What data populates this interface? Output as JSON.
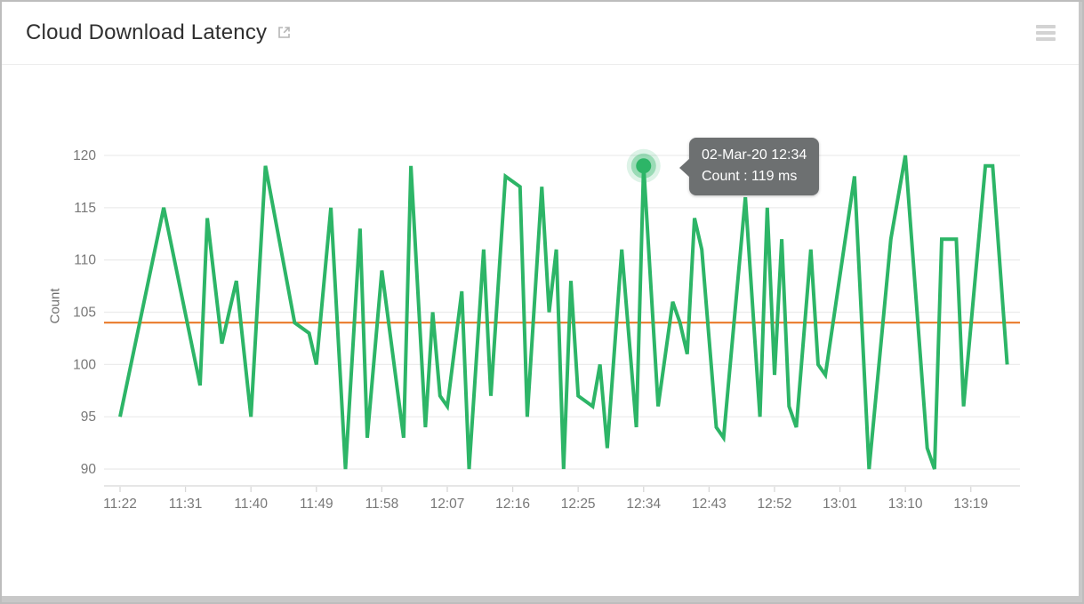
{
  "header": {
    "title": "Cloud Download Latency",
    "icons": {
      "external_link": "open-in-new",
      "menu": "hamburger-menu"
    }
  },
  "tooltip": {
    "line1": "02-Mar-20 12:34",
    "line2": "Count : 119 ms"
  },
  "colors": {
    "line": "#2db567",
    "threshold": "#e8731f",
    "tooltip_bg": "#6d7071",
    "grid": "#ececec",
    "axis_text": "#787878",
    "title_text": "#2f2f2f"
  },
  "chart_data": {
    "type": "line",
    "title": "Cloud Download Latency",
    "xlabel": "",
    "ylabel": "Count",
    "ylim": [
      90,
      120
    ],
    "grid": "horizontal",
    "yticks": [
      90,
      95,
      100,
      105,
      110,
      115,
      120
    ],
    "xticks": [
      "11:22",
      "11:31",
      "11:40",
      "11:49",
      "11:58",
      "12:07",
      "12:16",
      "12:25",
      "12:34",
      "12:43",
      "12:52",
      "13:01",
      "13:10",
      "13:19"
    ],
    "threshold": 104,
    "unit": "ms",
    "highlight": {
      "time": "12:34",
      "value": 119,
      "date": "02-Mar-20"
    },
    "points": [
      [
        "11:22",
        95
      ],
      [
        "11:28",
        115
      ],
      [
        "11:33",
        98
      ],
      [
        "11:34",
        114
      ],
      [
        "11:36",
        102
      ],
      [
        "11:38",
        108
      ],
      [
        "11:40",
        95
      ],
      [
        "11:42",
        119
      ],
      [
        "11:46",
        104
      ],
      [
        "11:48",
        103
      ],
      [
        "11:49",
        100
      ],
      [
        "11:51",
        115
      ],
      [
        "11:53",
        90
      ],
      [
        "11:55",
        113
      ],
      [
        "11:56",
        93
      ],
      [
        "11:58",
        109
      ],
      [
        "12:01",
        93
      ],
      [
        "12:02",
        119
      ],
      [
        "12:04",
        94
      ],
      [
        "12:05",
        105
      ],
      [
        "12:06",
        97
      ],
      [
        "12:07",
        96
      ],
      [
        "12:09",
        107
      ],
      [
        "12:10",
        90
      ],
      [
        "12:12",
        111
      ],
      [
        "12:13",
        97
      ],
      [
        "12:15",
        118
      ],
      [
        "12:17",
        117
      ],
      [
        "12:18",
        95
      ],
      [
        "12:20",
        117
      ],
      [
        "12:21",
        105
      ],
      [
        "12:22",
        111
      ],
      [
        "12:23",
        90
      ],
      [
        "12:24",
        108
      ],
      [
        "12:25",
        97
      ],
      [
        "12:27",
        96
      ],
      [
        "12:28",
        100
      ],
      [
        "12:29",
        92
      ],
      [
        "12:31",
        111
      ],
      [
        "12:33",
        94
      ],
      [
        "12:34",
        119
      ],
      [
        "12:36",
        96
      ],
      [
        "12:38",
        106
      ],
      [
        "12:39",
        104
      ],
      [
        "12:40",
        101
      ],
      [
        "12:41",
        114
      ],
      [
        "12:42",
        111
      ],
      [
        "12:44",
        94
      ],
      [
        "12:45",
        93
      ],
      [
        "12:48",
        116
      ],
      [
        "12:50",
        95
      ],
      [
        "12:51",
        115
      ],
      [
        "12:52",
        99
      ],
      [
        "12:53",
        112
      ],
      [
        "12:54",
        96
      ],
      [
        "12:55",
        94
      ],
      [
        "12:57",
        111
      ],
      [
        "12:58",
        100
      ],
      [
        "12:59",
        99
      ],
      [
        "13:03",
        118
      ],
      [
        "13:05",
        90
      ],
      [
        "13:08",
        112
      ],
      [
        "13:10",
        120
      ],
      [
        "13:13",
        92
      ],
      [
        "13:14",
        90
      ],
      [
        "13:15",
        112
      ],
      [
        "13:17",
        112
      ],
      [
        "13:18",
        96
      ],
      [
        "13:21",
        119
      ],
      [
        "13:22",
        119
      ],
      [
        "13:24",
        100
      ]
    ]
  }
}
